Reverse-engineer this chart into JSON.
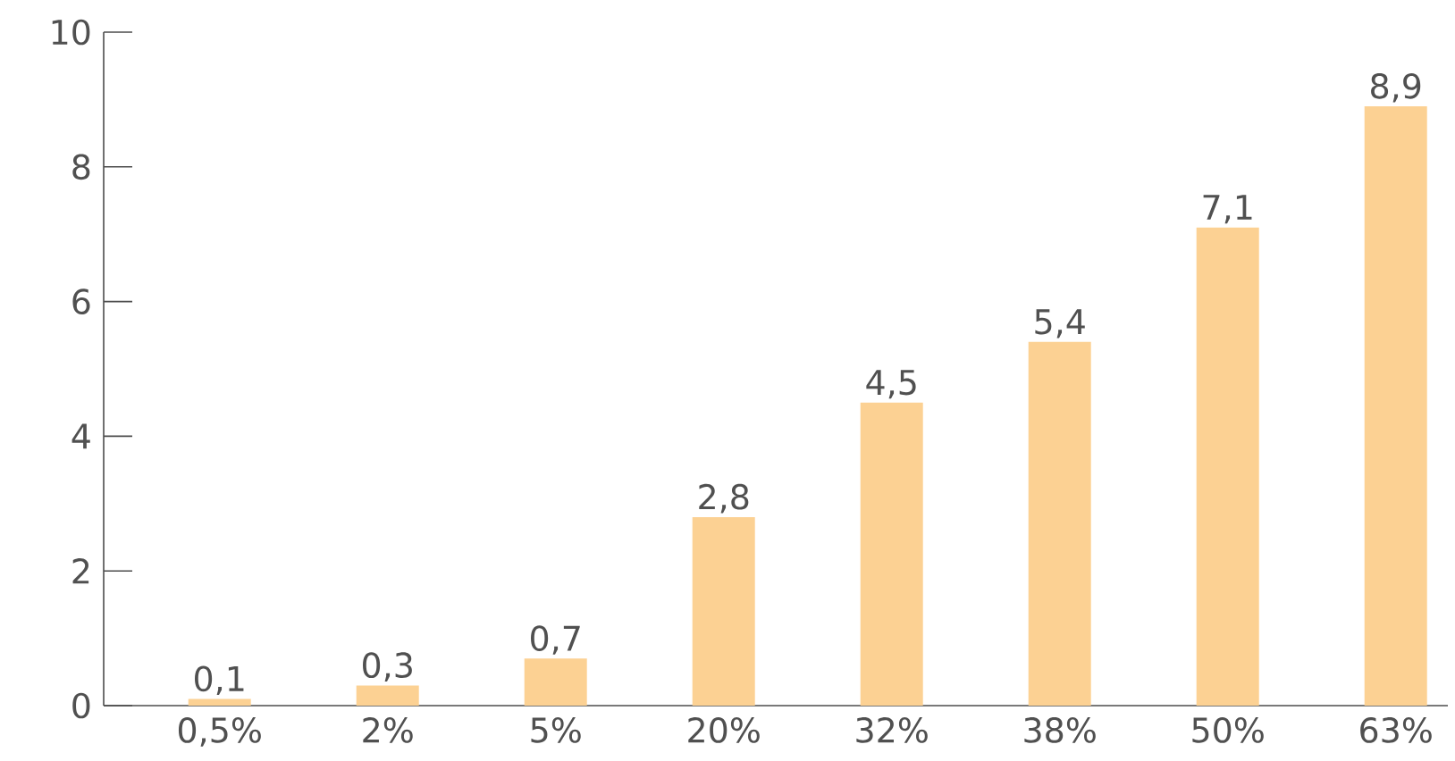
{
  "chart_data": {
    "type": "bar",
    "categories": [
      "0,5%",
      "2%",
      "5%",
      "20%",
      "32%",
      "38%",
      "50%",
      "63%"
    ],
    "values": [
      0.1,
      0.3,
      0.7,
      2.8,
      4.5,
      5.4,
      7.1,
      8.9
    ],
    "value_labels": [
      "0,1",
      "0,3",
      "0,7",
      "2,8",
      "4,5",
      "5,4",
      "7,1",
      "8,9"
    ],
    "color": "#fcd193",
    "ylim": [
      0,
      10
    ],
    "yticks": [
      0,
      2,
      4,
      6,
      8,
      10
    ]
  }
}
